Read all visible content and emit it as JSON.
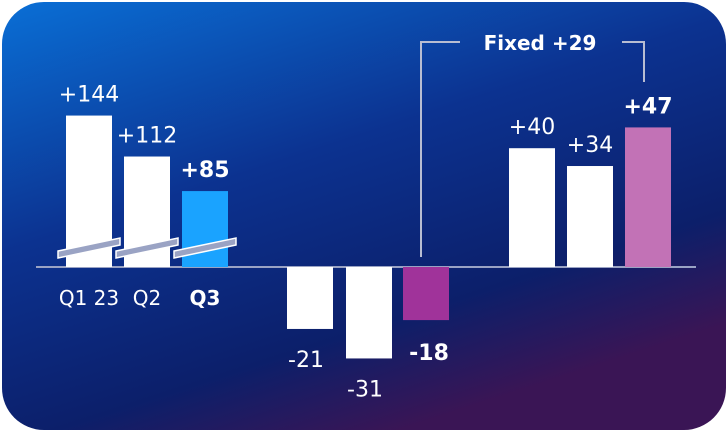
{
  "chart_data": {
    "type": "bar",
    "groups": [
      {
        "name": "quarters",
        "bars": [
          {
            "label": "+144",
            "value": 144,
            "category": "Q1 23",
            "color": "#ffffff",
            "bold": false
          },
          {
            "label": "+112",
            "value": 112,
            "category": "Q2",
            "color": "#ffffff",
            "bold": false
          },
          {
            "label": "+85",
            "value": 85,
            "category": "Q3",
            "color": "#1aa3ff",
            "bold": true
          }
        ],
        "axis_break": true
      },
      {
        "name": "negatives",
        "bars": [
          {
            "label": "-21",
            "value": -21,
            "color": "#ffffff",
            "bold": false
          },
          {
            "label": "-31",
            "value": -31,
            "color": "#ffffff",
            "bold": false
          },
          {
            "label": "-18",
            "value": -18,
            "color": "#a0339a",
            "bold": true
          }
        ]
      },
      {
        "name": "fixed",
        "bars": [
          {
            "label": "+40",
            "value": 40,
            "color": "#ffffff",
            "bold": false
          },
          {
            "label": "+34",
            "value": 34,
            "color": "#ffffff",
            "bold": false
          },
          {
            "label": "+47",
            "value": 47,
            "color": "#c272b6",
            "bold": true
          }
        ]
      }
    ],
    "annotation": {
      "text": "Fixed +29"
    },
    "colors": {
      "panel_top": "#0a6fd6",
      "panel_mid": "#0c2f86",
      "panel_bottom": "#3a1555",
      "baseline": "#9aa3c4"
    }
  }
}
